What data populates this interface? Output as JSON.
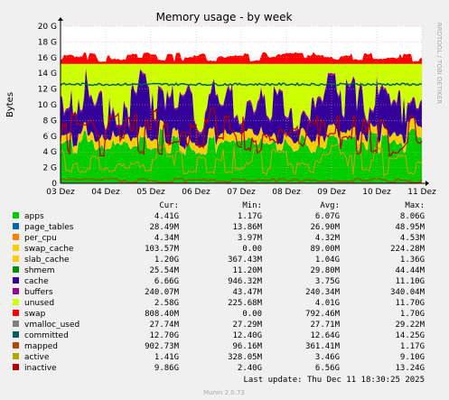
{
  "chart_data": {
    "type": "area",
    "title": "Memory usage - by week",
    "ylabel": "Bytes",
    "side_label": "RRDTOOL / TOBI OETIKER",
    "yticks": [
      "0",
      "2 G",
      "4 G",
      "6 G",
      "8 G",
      "10 G",
      "12 G",
      "14 G",
      "16 G",
      "18 G",
      "20 G"
    ],
    "ylim": [
      0,
      20
    ],
    "xticks": [
      "03 Dez",
      "04 Dez",
      "05 Dez",
      "06 Dez",
      "07 Dez",
      "08 Dez",
      "09 Dez",
      "10 Dez",
      "11 Dez"
    ],
    "grid": true,
    "legend_headers": {
      "cur": "Cur:",
      "min": "Min:",
      "avg": "Avg:",
      "max": "Max:"
    },
    "series": [
      {
        "name": "apps",
        "color": "#00cc00",
        "cur": "4.41G",
        "min": "1.17G",
        "avg": "6.07G",
        "max": "8.06G"
      },
      {
        "name": "page_tables",
        "color": "#0066b3",
        "cur": "28.49M",
        "min": "13.86M",
        "avg": "26.90M",
        "max": "48.95M"
      },
      {
        "name": "per_cpu",
        "color": "#ff8000",
        "cur": "4.34M",
        "min": "3.97M",
        "avg": "4.32M",
        "max": "4.53M"
      },
      {
        "name": "swap_cache",
        "color": "#ffcc00",
        "cur": "103.57M",
        "min": "0.00",
        "avg": "89.00M",
        "max": "224.28M"
      },
      {
        "name": "slab_cache",
        "color": "#ffcc00",
        "cur": "1.20G",
        "min": "367.43M",
        "avg": "1.04G",
        "max": "1.36G"
      },
      {
        "name": "shmem",
        "color": "#008f00",
        "cur": "25.54M",
        "min": "11.20M",
        "avg": "29.80M",
        "max": "44.44M"
      },
      {
        "name": "cache",
        "color": "#330099",
        "cur": "6.66G",
        "min": "946.32M",
        "avg": "3.75G",
        "max": "11.10G"
      },
      {
        "name": "buffers",
        "color": "#990099",
        "cur": "240.07M",
        "min": "43.47M",
        "avg": "240.34M",
        "max": "340.04M"
      },
      {
        "name": "unused",
        "color": "#ccff00",
        "cur": "2.58G",
        "min": "225.68M",
        "avg": "4.01G",
        "max": "11.70G"
      },
      {
        "name": "swap",
        "color": "#ff0000",
        "cur": "808.40M",
        "min": "0.00",
        "avg": "792.46M",
        "max": "1.70G"
      },
      {
        "name": "vmalloc_used",
        "color": "#808080",
        "cur": "27.74M",
        "min": "27.29M",
        "avg": "27.71M",
        "max": "29.22M"
      },
      {
        "name": "committed",
        "color": "#005f5f",
        "cur": "12.70G",
        "min": "12.40G",
        "avg": "12.64G",
        "max": "14.25G"
      },
      {
        "name": "mapped",
        "color": "#b34700",
        "cur": "902.73M",
        "min": "96.16M",
        "avg": "361.41M",
        "max": "1.17G"
      },
      {
        "name": "active",
        "color": "#b3a600",
        "cur": "1.41G",
        "min": "328.05M",
        "avg": "3.46G",
        "max": "9.10G"
      },
      {
        "name": "inactive",
        "color": "#b30000",
        "cur": "9.86G",
        "min": "2.40G",
        "avg": "6.56G",
        "max": "13.24G"
      }
    ]
  },
  "footer": {
    "last_update": "Last update:  Thu Dec 11 18:30:25 2025",
    "munin": "Munin 2.0.73"
  }
}
